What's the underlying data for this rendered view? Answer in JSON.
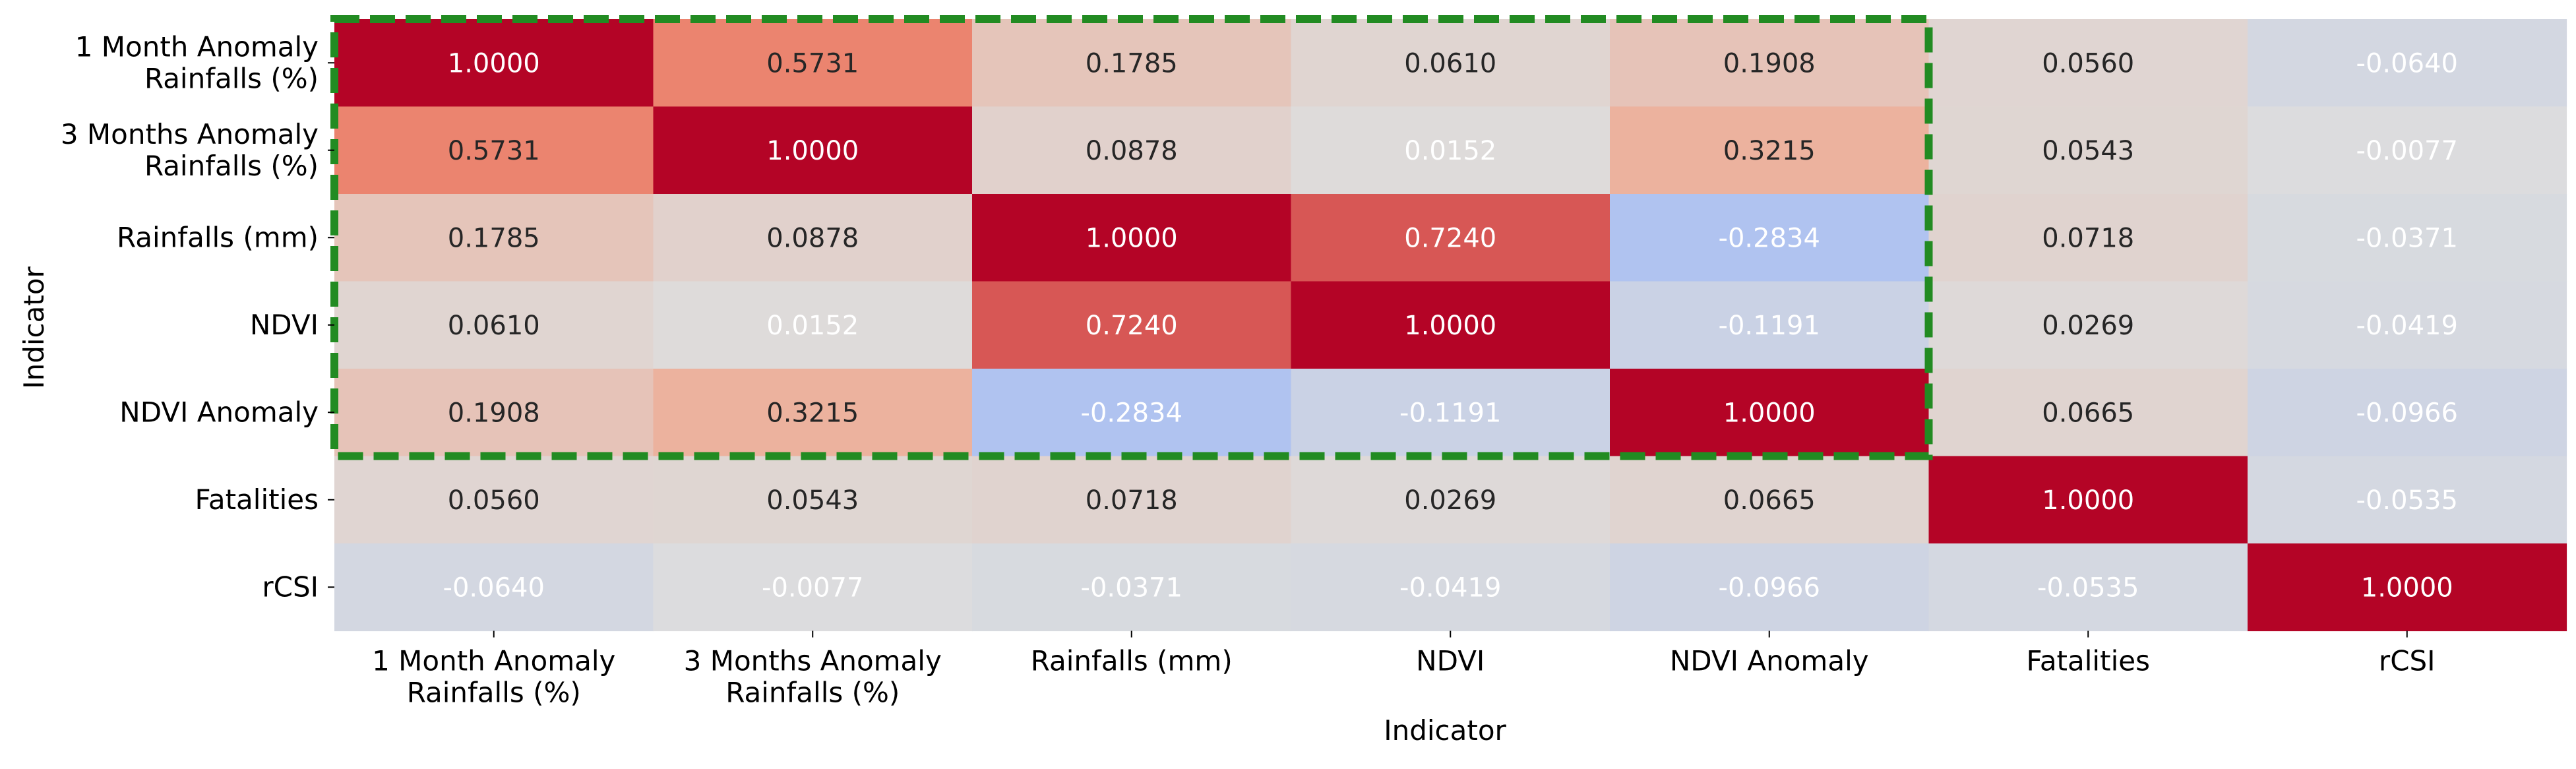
{
  "chart_data": {
    "type": "heatmap",
    "title": "",
    "xlabel": "Indicator",
    "ylabel": "Indicator",
    "colormap": "coolwarm",
    "colorbar": false,
    "row_labels": [
      "1 Month Anomaly\nRainfalls (%)",
      "3 Months Anomaly\nRainfalls (%)",
      "Rainfalls (mm)",
      "NDVI",
      "NDVI Anomaly",
      "Fatalities",
      "rCSI"
    ],
    "col_labels": [
      "1 Month Anomaly\nRainfalls (%)",
      "3 Months Anomaly\nRainfalls (%)",
      "Rainfalls (mm)",
      "NDVI",
      "NDVI Anomaly",
      "Fatalities",
      "rCSI"
    ],
    "values": [
      [
        1.0,
        0.5731,
        0.1785,
        0.061,
        0.1908,
        0.056,
        -0.064
      ],
      [
        0.5731,
        1.0,
        0.0878,
        0.0152,
        0.3215,
        0.0543,
        -0.0077
      ],
      [
        0.1785,
        0.0878,
        1.0,
        0.724,
        -0.2834,
        0.0718,
        -0.0371
      ],
      [
        0.061,
        0.0152,
        0.724,
        1.0,
        -0.1191,
        0.0269,
        -0.0419
      ],
      [
        0.1908,
        0.3215,
        -0.2834,
        -0.1191,
        1.0,
        0.0665,
        -0.0966
      ],
      [
        0.056,
        0.0543,
        0.0718,
        0.0269,
        0.0665,
        1.0,
        -0.0535
      ],
      [
        -0.064,
        -0.0077,
        -0.0371,
        -0.0419,
        -0.0966,
        -0.0535,
        1.0
      ]
    ],
    "cell_labels": [
      [
        "1.0000",
        "0.5731",
        "0.1785",
        "0.0610",
        "0.1908",
        "0.0560",
        "-0.0640"
      ],
      [
        "0.5731",
        "1.0000",
        "0.0878",
        "0.0152",
        "0.3215",
        "0.0543",
        "-0.0077"
      ],
      [
        "0.1785",
        "0.0878",
        "1.0000",
        "0.7240",
        "-0.2834",
        "0.0718",
        "-0.0371"
      ],
      [
        "0.0610",
        "0.0152",
        "0.7240",
        "1.0000",
        "-0.1191",
        "0.0269",
        "-0.0419"
      ],
      [
        "0.1908",
        "0.3215",
        "-0.2834",
        "-0.1191",
        "1.0000",
        "0.0665",
        "-0.0966"
      ],
      [
        "0.0560",
        "0.0543",
        "0.0718",
        "0.0269",
        "0.0665",
        "1.0000",
        "-0.0535"
      ],
      [
        "-0.0640",
        "-0.0077",
        "-0.0371",
        "-0.0419",
        "-0.0966",
        "-0.0535",
        "1.0000"
      ]
    ],
    "highlight": {
      "style": "dashed",
      "color": "#228b22",
      "rows": [
        0,
        4
      ],
      "cols": [
        0,
        4
      ]
    },
    "colors": {
      "low": "#3b4cc0",
      "mid": "#dddddd",
      "high": "#b40426",
      "light_text": "#ffffff",
      "dark_text": "#262626"
    }
  }
}
